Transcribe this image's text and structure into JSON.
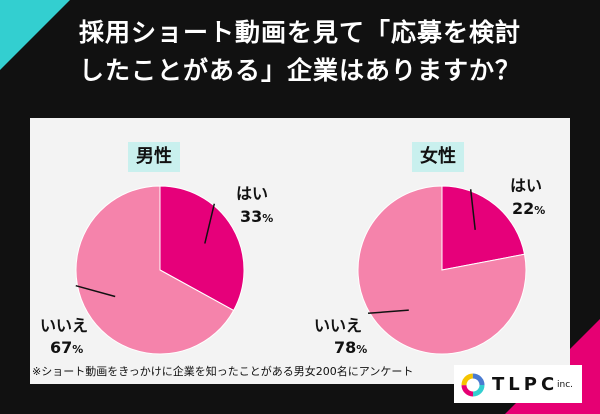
{
  "title": {
    "line1": "採用ショート動画を見て「応募を検討",
    "line2": "したことがある」企業はありますか？"
  },
  "chart_data": [
    {
      "type": "pie",
      "title": "男性",
      "categories": [
        "はい",
        "いいえ"
      ],
      "values": [
        33,
        67
      ],
      "unit": "%",
      "colors": [
        "#e6007a",
        "#f583ab"
      ]
    },
    {
      "type": "pie",
      "title": "女性",
      "categories": [
        "はい",
        "いいえ"
      ],
      "values": [
        22,
        78
      ],
      "unit": "%",
      "colors": [
        "#e6007a",
        "#f583ab"
      ]
    }
  ],
  "footnote": "※ショート動画をきっかけに企業を知ったことがある男女200名にアンケート",
  "logo": {
    "text": "TLPC",
    "suffix": "inc."
  },
  "colors": {
    "background": "#111111",
    "accent_teal": "#33cfd0",
    "accent_pink": "#e60073",
    "tag": "#c9f0ee"
  }
}
